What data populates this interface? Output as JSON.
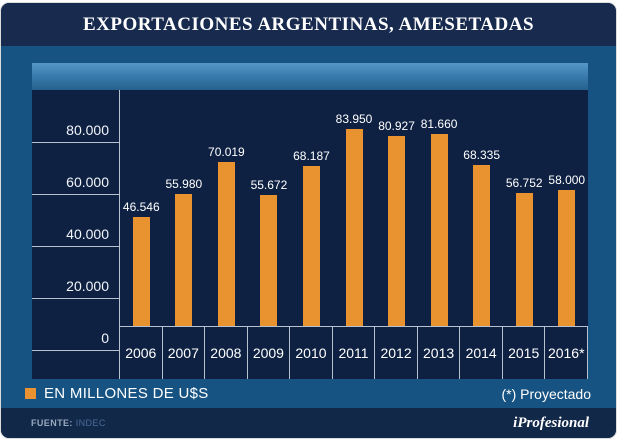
{
  "title": "EXPORTACIONES ARGENTINAS, AMESETADAS",
  "chart_data": {
    "type": "bar",
    "categories": [
      "2006",
      "2007",
      "2008",
      "2009",
      "2010",
      "2011",
      "2012",
      "2013",
      "2014",
      "2015",
      "2016*"
    ],
    "values": [
      46546,
      55980,
      70019,
      55672,
      68187,
      83950,
      80927,
      81660,
      68335,
      56752,
      58000
    ],
    "value_labels": [
      "46.546",
      "55.980",
      "70.019",
      "55.672",
      "68.187",
      "83.950",
      "80.927",
      "81.660",
      "68.335",
      "56.752",
      "58.000"
    ],
    "y_ticks": [
      "80.000",
      "60.000",
      "40.000",
      "20.000",
      "0"
    ],
    "y_tick_values": [
      80000,
      60000,
      40000,
      20000,
      0
    ],
    "ylim": [
      0,
      100000
    ],
    "grid": "horizontal-lines-on-axis-column-only",
    "legend_position": "bottom-left",
    "title": "EXPORTACIONES ARGENTINAS, AMESETADAS",
    "xlabel": "",
    "ylabel": "EN MILLONES DE U$S",
    "bar_color": "#e8932f",
    "plot_background": "#0e2142"
  },
  "legend": {
    "label": "EN MILLONES DE U$S",
    "note": "(*) Proyectado",
    "swatch_color": "#e8932f"
  },
  "footer": {
    "source_label": "FUENTE:",
    "source_value": "INDEC",
    "brand": "iProfesional"
  },
  "colors": {
    "title_bar": "#182b4f",
    "frame": "#175382",
    "band_top": "#5598c8",
    "band_bottom": "#26618e",
    "chart_bg": "#0e2142",
    "bar": "#e8932f",
    "grid_line": "#b6c2ce",
    "bottom_bar": "#122849",
    "text": "#ffffff"
  }
}
